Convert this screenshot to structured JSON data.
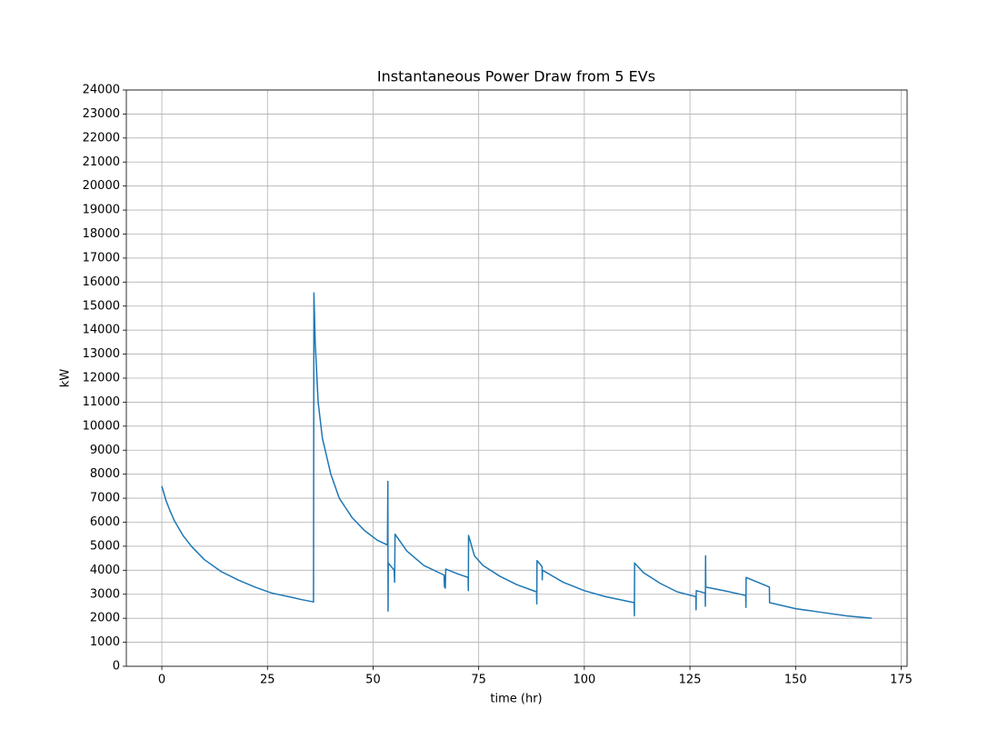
{
  "chart_data": {
    "type": "line",
    "title": "Instantaneous Power Draw from 5 EVs",
    "x_label": "time (hr)",
    "y_label": "kW",
    "x": [
      0,
      1,
      2,
      3,
      5,
      7,
      10,
      14,
      18,
      22,
      26,
      30,
      33,
      35.9,
      36,
      36.3,
      37,
      38,
      40,
      42,
      45,
      48,
      51,
      53.4,
      53.5,
      53.55,
      53.6,
      55,
      55.1,
      55.2,
      58,
      62,
      66.8,
      66.9,
      67.0,
      67.1,
      67.2,
      70,
      72.5,
      72.55,
      72.6,
      74,
      76,
      80,
      84,
      88.7,
      88.75,
      88.8,
      90,
      90.05,
      90.1,
      95,
      100,
      105,
      111.8,
      111.85,
      111.9,
      114,
      118,
      122,
      126.4,
      126.45,
      126.5,
      128.6,
      128.65,
      128.7,
      128.75,
      133,
      138.2,
      138.25,
      138.3,
      143.8,
      143.85,
      150,
      156,
      162,
      168
    ],
    "series": [
      {
        "color": "#1f77b4",
        "values": [
          7500,
          6900,
          6450,
          6050,
          5450,
          5000,
          4450,
          3950,
          3600,
          3300,
          3050,
          2900,
          2780,
          2680,
          15550,
          13500,
          11000,
          9500,
          8000,
          7000,
          6200,
          5650,
          5250,
          5050,
          7700,
          2300,
          4300,
          4000,
          3500,
          5500,
          4800,
          4200,
          3800,
          3300,
          3700,
          3250,
          4050,
          3850,
          3700,
          3150,
          5450,
          4600,
          4200,
          3750,
          3400,
          3100,
          2600,
          4400,
          4150,
          3600,
          4000,
          3500,
          3150,
          2900,
          2650,
          2100,
          4300,
          3900,
          3450,
          3100,
          2900,
          2350,
          3150,
          3050,
          2500,
          4600,
          3300,
          3150,
          2950,
          2450,
          3700,
          3300,
          2650,
          2400,
          2250,
          2100,
          2000
        ]
      }
    ],
    "xlim": [
      -8.4,
      176.4
    ],
    "xticks": [
      0,
      25,
      50,
      75,
      100,
      125,
      150,
      175
    ],
    "ylim": [
      0,
      24000
    ],
    "yticks": [
      0,
      1000,
      2000,
      3000,
      4000,
      5000,
      6000,
      7000,
      8000,
      9000,
      10000,
      11000,
      12000,
      13000,
      14000,
      15000,
      16000,
      17000,
      18000,
      19000,
      20000,
      21000,
      22000,
      23000,
      24000
    ],
    "grid": true
  }
}
